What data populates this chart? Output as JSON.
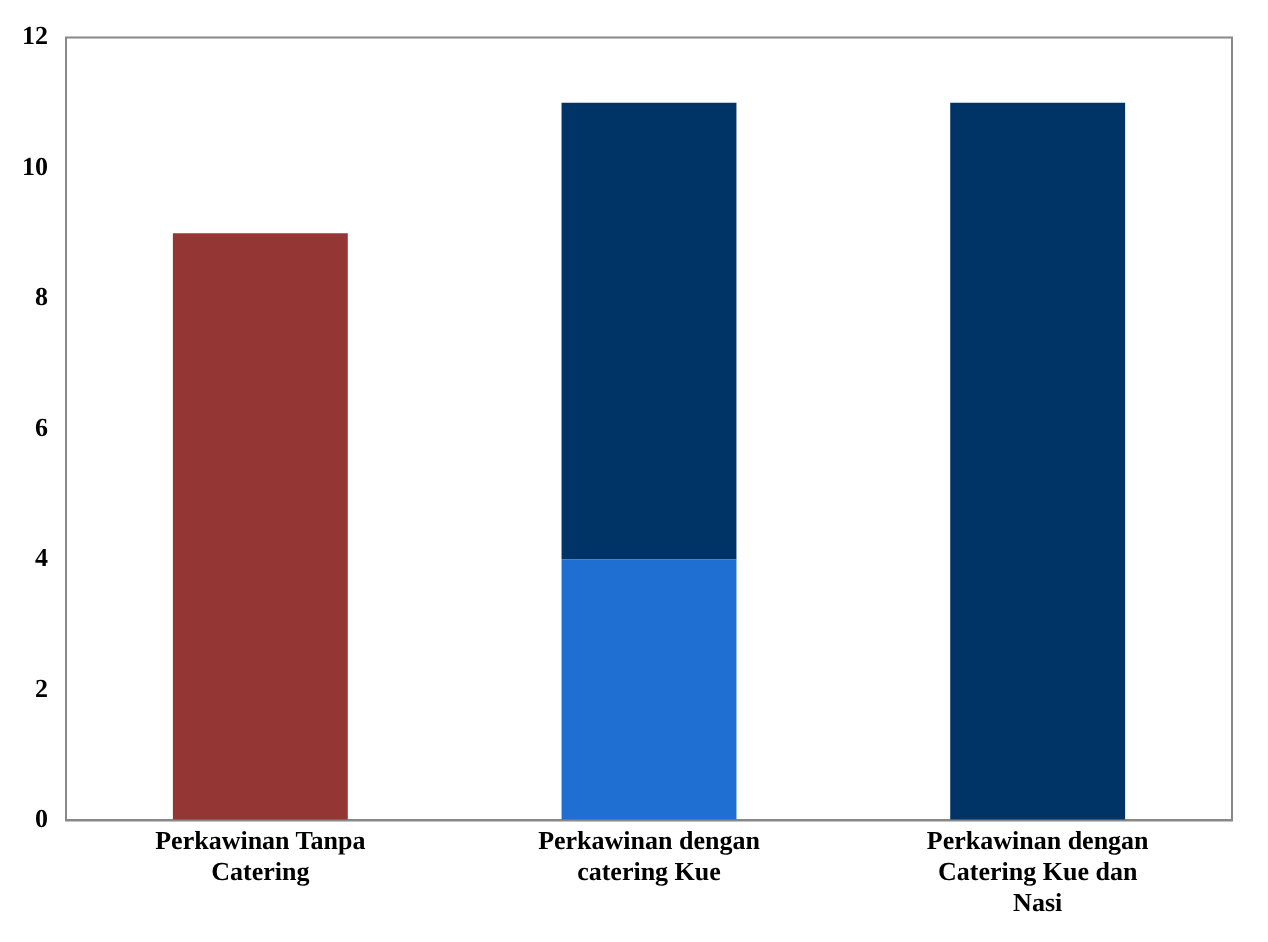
{
  "chart_data": {
    "type": "bar",
    "stacked": true,
    "categories": [
      "Perkawinan Tanpa Catering",
      "Perkawinan dengan catering Kue",
      "Perkawinan dengan Catering Kue dan Nasi"
    ],
    "series": [
      {
        "color": "#943634",
        "values": [
          9,
          null,
          null
        ]
      },
      {
        "color": "#1f6fd2",
        "values": [
          null,
          4,
          null
        ]
      },
      {
        "color": "#003366",
        "values": [
          null,
          7,
          11
        ]
      }
    ],
    "ylim": [
      0,
      12
    ],
    "yticks": [
      0,
      2,
      4,
      6,
      8,
      10,
      12
    ],
    "grid": false,
    "legend": false
  }
}
